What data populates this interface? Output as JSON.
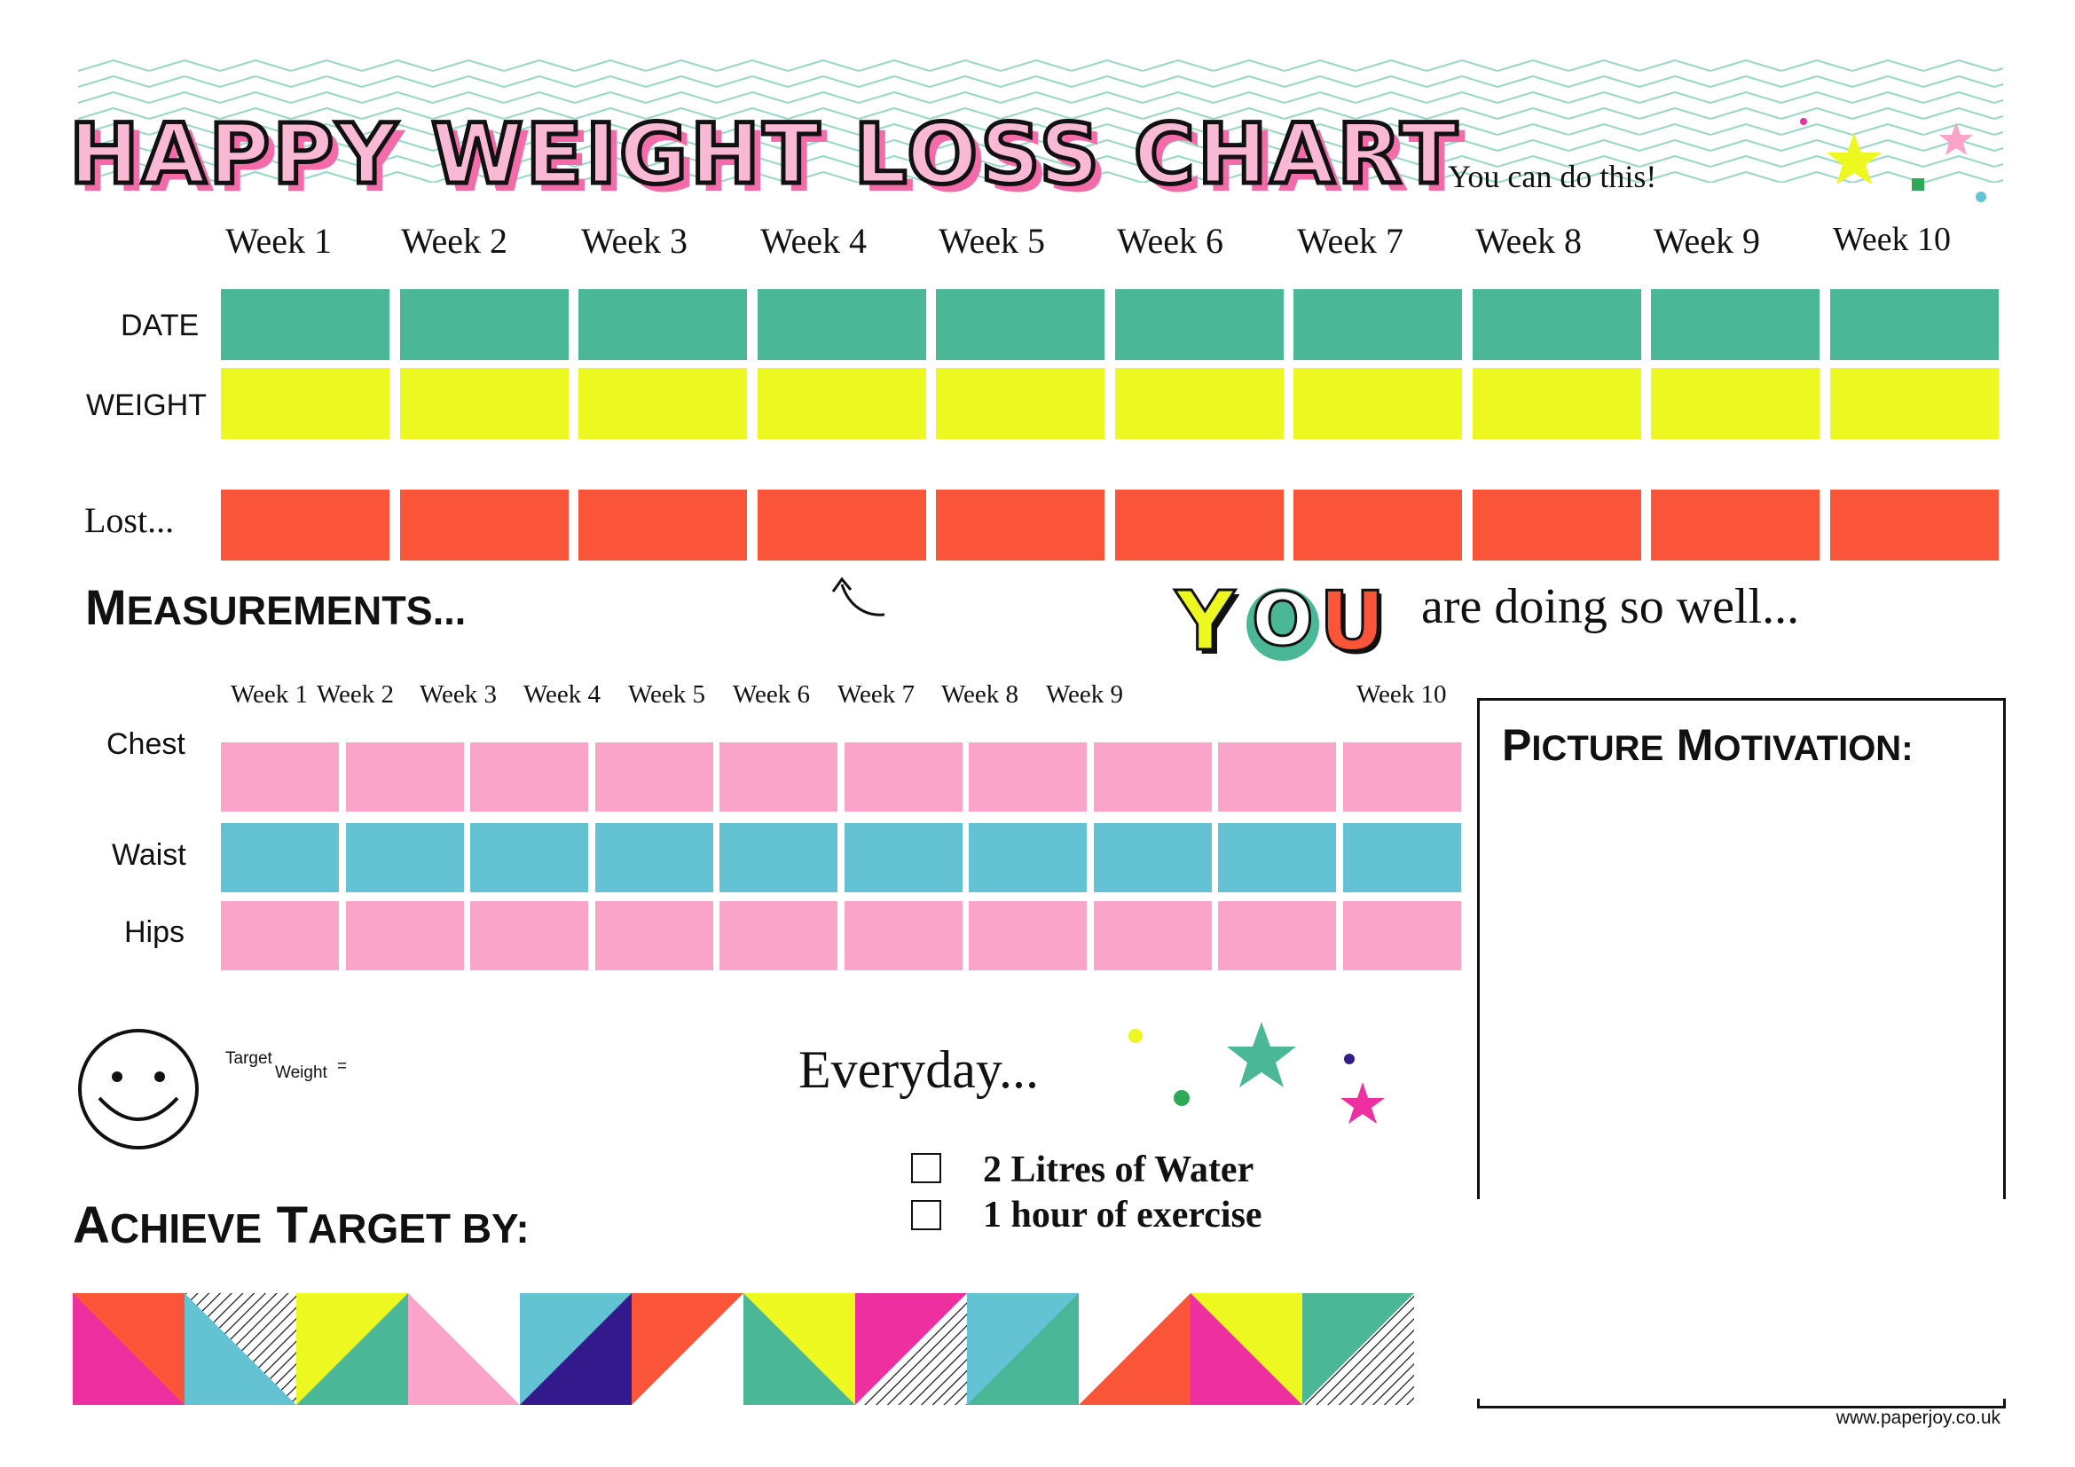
{
  "header": {
    "title": "HAPPY WEIGHT LOSS CHART",
    "tagline": "You can do this!"
  },
  "weekly_table": {
    "weeks": [
      "Week 1",
      "Week 2",
      "Week 3",
      "Week 4",
      "Week 5",
      "Week 6",
      "Week 7",
      "Week 8",
      "Week 9",
      "Week 10"
    ],
    "rows": [
      {
        "label": "DATE",
        "color": "#4ab796"
      },
      {
        "label": "WEIGHT",
        "color": "#ecf820"
      },
      {
        "label": "Lost...",
        "color": "#fa5538"
      }
    ]
  },
  "measurements": {
    "heading_first": "M",
    "heading_rest": "EASUREMENTS...",
    "weeks": [
      "Week 1",
      "Week 2",
      "Week 3",
      "Week 4",
      "Week 5",
      "Week 6",
      "Week 7",
      "Week 8",
      "Week 9",
      "Week 10"
    ],
    "rows": [
      {
        "label": "Chest",
        "color": "#f9a4c8"
      },
      {
        "label": "Waist",
        "color": "#63c3d3"
      },
      {
        "label": "Hips",
        "color": "#f9a4c8"
      }
    ]
  },
  "encouragement": {
    "you_letters": [
      "Y",
      "O",
      "U"
    ],
    "text": "are doing so well..."
  },
  "picture_motivation": {
    "heading_p": "P",
    "heading_p_rest": "ICTURE",
    "heading_m": "M",
    "heading_m_rest": "OTIVATION:"
  },
  "target": {
    "label_top": "Target",
    "label_bottom": "Weight",
    "equals": "="
  },
  "everyday": {
    "heading": "Everyday...",
    "items": [
      "2 Litres of Water",
      "1 hour of exercise"
    ]
  },
  "achieve": {
    "a": "A",
    "a_rest": "CHIEVE",
    "t": "T",
    "t_rest": "ARGET BY:"
  },
  "footer": {
    "url": "www.paperjoy.co.uk"
  },
  "colors": {
    "green": "#4ab796",
    "yellow": "#ecf820",
    "orange": "#fa5538",
    "pink": "#f9a4c8",
    "hot_pink": "#ee2f9f",
    "blue": "#63c3d3",
    "purple": "#32198c"
  }
}
